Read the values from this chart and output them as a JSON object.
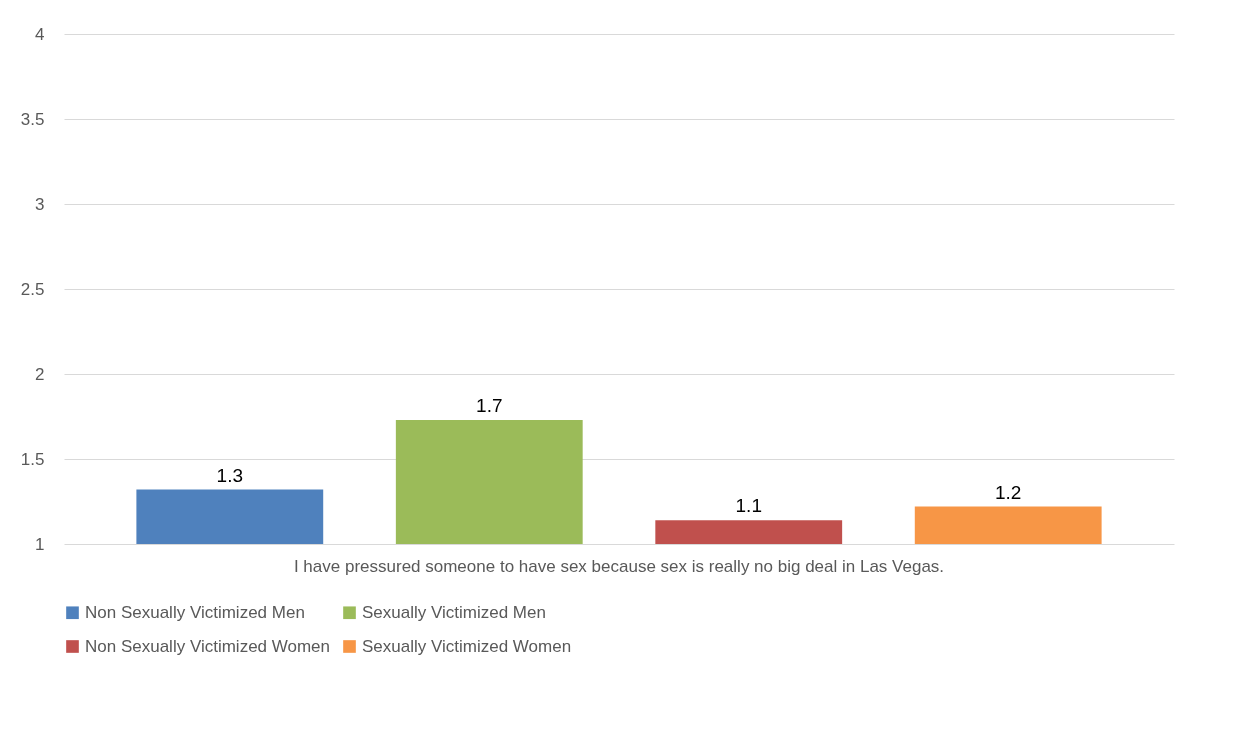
{
  "chart_data": {
    "type": "bar",
    "categories": [
      "I have pressured someone to have sex because sex is really no big deal in Las Vegas."
    ],
    "series": [
      {
        "name": "Non Sexually Victimized Men",
        "color": "#4f81bd",
        "values": [
          1.32
        ],
        "value_labels": [
          "1.3"
        ]
      },
      {
        "name": "Sexually Victimized Men",
        "color": "#9bbb59",
        "values": [
          1.73
        ],
        "value_labels": [
          "1.7"
        ]
      },
      {
        "name": "Non Sexually Victimized Women",
        "color": "#c0504d",
        "values": [
          1.14
        ],
        "value_labels": [
          "1.1"
        ]
      },
      {
        "name": "Sexually Victimized Women",
        "color": "#f79646",
        "values": [
          1.22
        ],
        "value_labels": [
          "1.2"
        ]
      }
    ],
    "ylim": [
      1,
      4
    ],
    "yticks": [
      1,
      1.5,
      2,
      2.5,
      3,
      3.5,
      4
    ],
    "grid": "y",
    "legend": "bottom"
  }
}
